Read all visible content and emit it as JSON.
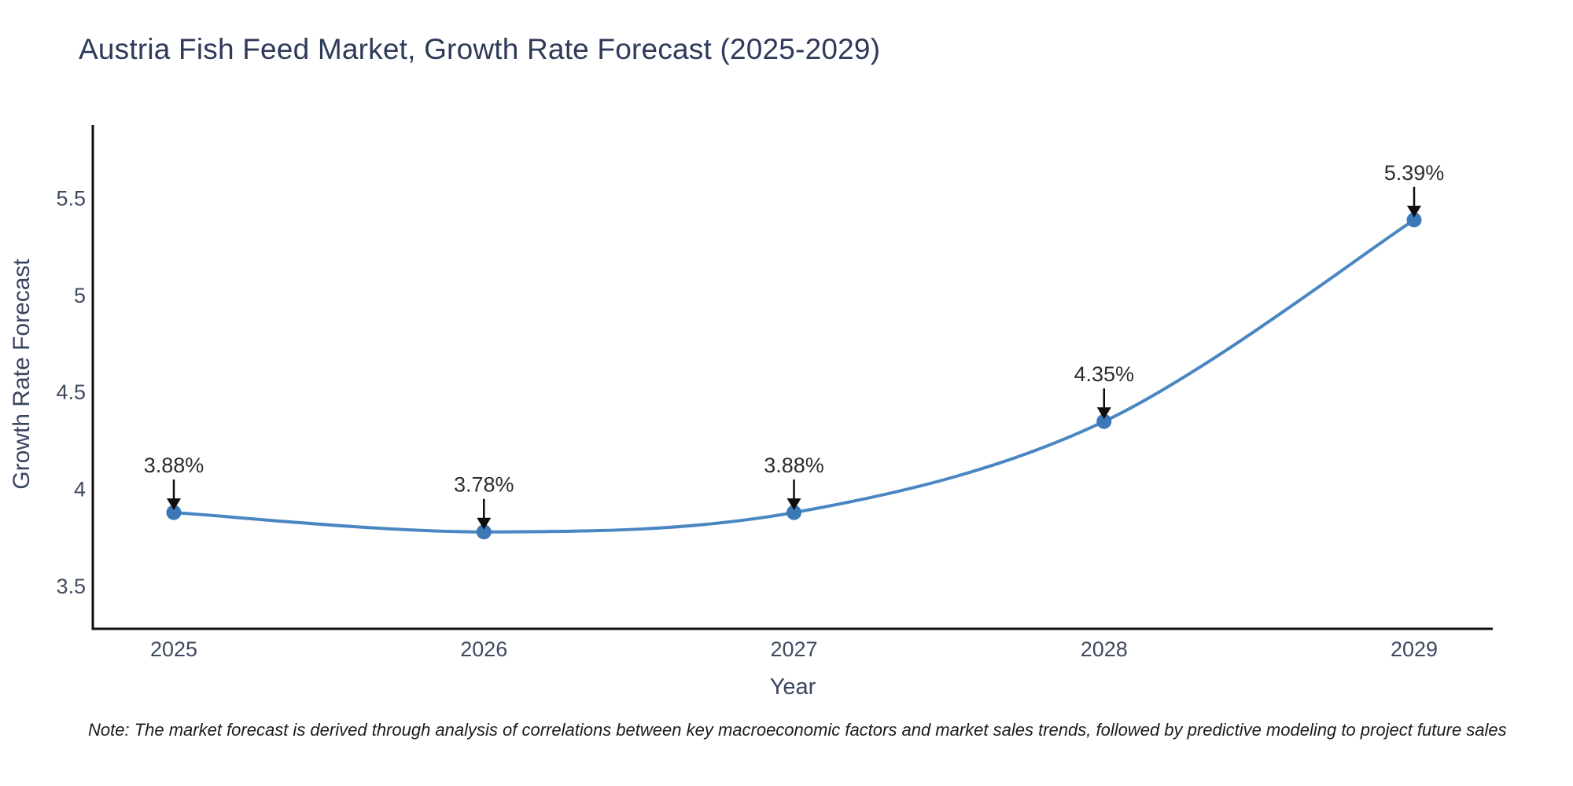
{
  "chart_data": {
    "type": "line",
    "title": "Austria Fish Feed Market, Growth Rate Forecast (2025-2029)",
    "xlabel": "Year",
    "ylabel": "Growth Rate Forecast",
    "categories": [
      "2025",
      "2026",
      "2027",
      "2028",
      "2029"
    ],
    "series": [
      {
        "name": "Growth Rate Forecast",
        "values": [
          3.88,
          3.78,
          3.88,
          4.35,
          5.39
        ]
      }
    ],
    "point_labels": [
      "3.88%",
      "3.78%",
      "3.88%",
      "4.35%",
      "5.39%"
    ],
    "ytick_values": [
      3.5,
      4,
      4.5,
      5,
      5.5
    ],
    "ytick_labels": [
      "3.5",
      "4",
      "4.5",
      "5",
      "5.5"
    ],
    "ylim": [
      3.28,
      5.88
    ],
    "grid": false,
    "legend": "none",
    "annotation_style": "down-arrow-to-point",
    "note": "Note: The market forecast is derived through analysis of correlations between key macroeconomic factors and market sales trends, followed by predictive modeling to project future sales",
    "colors": {
      "line": "#4a86c2",
      "marker": "#3a78b8",
      "axis": "#0e0e0e",
      "arrow": "#0e0e0e",
      "title_text": "#2e3a59",
      "axis_title_text": "#3a4560",
      "tick_text": "#3f4a5f",
      "annotation_text": "#2d2d2d",
      "note_text": "#1c1c1c"
    }
  }
}
